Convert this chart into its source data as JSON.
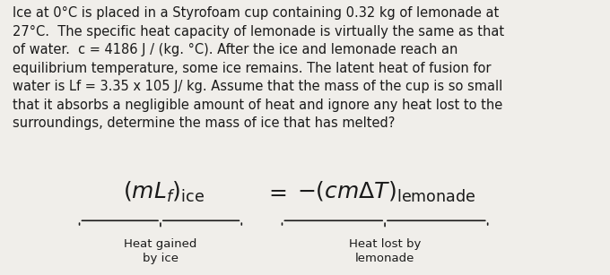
{
  "background_color": "#f0eeea",
  "paragraph_text": "Ice at 0°C is placed in a Styrofoam cup containing 0.32 kg of lemonade at\n27°C.  The specific heat capacity of lemonade is virtually the same as that\nof water.  c = 4186 J / (kg. °C). After the ice and lemonade reach an\nequilibrium temperature, some ice remains. The latent heat of fusion for\nwater is Lf = 3.35 x 105 J/ kg. Assume that the mass of the cup is so small\nthat it absorbs a negligible amount of heat and ignore any heat lost to the\nsurroundings, determine the mass of ice that has melted?",
  "formula_left": "(mL_f)_{ice}",
  "formula_eq": "=",
  "formula_right": "-(cm\\Delta T)_{lemonade}",
  "label_left_line1": "Heat gained",
  "label_left_line2": "by ice",
  "label_right_line1": "Heat lost by",
  "label_right_line2": "lemonade",
  "text_color": "#1a1a1a",
  "font_size_para": 10.5,
  "font_size_formula": 18,
  "font_size_label": 9.5
}
